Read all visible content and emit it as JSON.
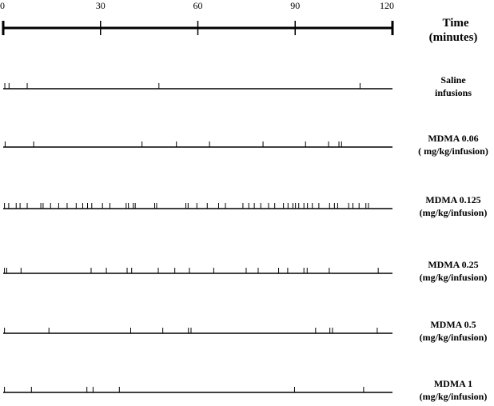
{
  "chart_data": {
    "type": "event_raster",
    "axis": {
      "label_line1": "Time",
      "label_line2": "(minutes)",
      "xlim": [
        0,
        120
      ],
      "ticks": [
        0,
        30,
        60,
        90,
        120
      ],
      "tick_labels": [
        "0",
        "30",
        "60",
        "90",
        "120"
      ]
    },
    "series": [
      {
        "name": "Saline infusions",
        "label_lines": [
          "Saline",
          "infusions"
        ],
        "events": [
          0.5,
          1.8,
          7.4,
          48.0,
          110.0
        ]
      },
      {
        "name": "MDMA 0.06 (mg/kg/infusion)",
        "label_lines": [
          "MDMA 0.06",
          "( mg/kg/infusion)"
        ],
        "events": [
          0.6,
          9.4,
          42.8,
          53.4,
          63.6,
          80.1,
          93.2,
          100.3,
          103.5,
          104.3
        ]
      },
      {
        "name": "MDMA 0.125 (mg/kg/infusion)",
        "label_lines": [
          "MDMA 0.125",
          "(mg/kg/infusion)"
        ],
        "events": [
          0.4,
          1.7,
          4.0,
          5.2,
          7.4,
          11.6,
          12.3,
          14.6,
          17.1,
          19.7,
          22.5,
          24.5,
          26.0,
          27.3,
          30.6,
          32.9,
          37.9,
          38.6,
          40.1,
          40.7,
          46.7,
          47.3,
          56.3,
          57.0,
          59.7,
          62.9,
          66.4,
          68.5,
          73.9,
          75.7,
          77.4,
          79.4,
          81.8,
          83.7,
          86.4,
          87.8,
          89.3,
          90.1,
          91.1,
          92.7,
          93.8,
          95.3,
          97.3,
          100.6,
          102.1,
          103.1,
          106.5,
          107.8,
          109.7,
          111.8,
          112.6
        ]
      },
      {
        "name": "MDMA 0.25 (mg/kg/infusion)",
        "label_lines": [
          "MDMA 0.25",
          "(mg/kg/infusion)"
        ],
        "events": [
          0.4,
          1.1,
          5.5,
          27.1,
          31.8,
          38.2,
          39.6,
          47.8,
          52.9,
          57.4,
          64.9,
          74.9,
          78.6,
          84.9,
          87.7,
          92.7,
          93.7,
          100.5,
          115.6
        ]
      },
      {
        "name": "MDMA 0.5 (mg/kg/infusion)",
        "label_lines": [
          "MDMA 0.5",
          "(mg/kg/infusion)"
        ],
        "events": [
          0.4,
          14.1,
          39.3,
          49.2,
          57.1,
          57.9,
          96.3,
          100.7,
          101.5,
          115.3
        ]
      },
      {
        "name": "MDMA 1 (mg/kg/infusion)",
        "label_lines": [
          "MDMA 1",
          "(mg/kg/infusion)"
        ],
        "events": [
          0.4,
          8.7,
          25.8,
          27.7,
          35.8,
          89.8,
          111.1
        ]
      }
    ]
  }
}
